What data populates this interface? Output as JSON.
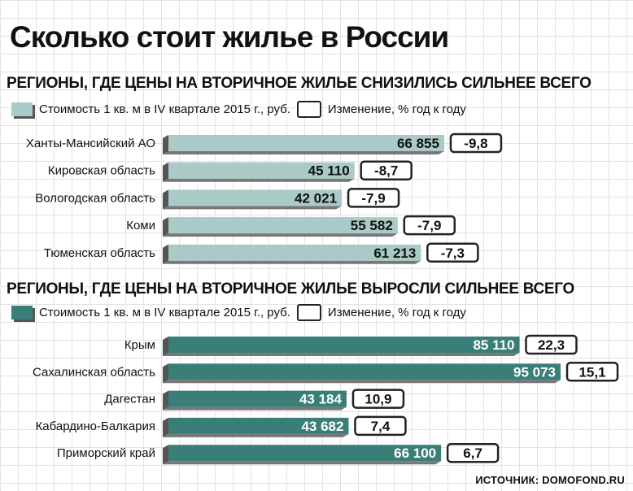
{
  "title": "Сколько стоит жилье в России",
  "source": "ИСТОЧНИК: DOMOFOND.RU",
  "colors": {
    "decrease_bar": "#a9cac6",
    "increase_bar": "#3a7f77"
  },
  "chart_data": [
    {
      "type": "bar",
      "title": "РЕГИОНЫ, ГДЕ ЦЕНЫ НА ВТОРИЧНОЕ ЖИЛЬЕ СНИЗИЛИСЬ СИЛЬНЕЕ ВСЕГО",
      "legend": {
        "value_label": "Стоимость 1 кв. м в IV квартале 2015 г., руб.",
        "change_label": "Изменение, % год к году"
      },
      "categories": [
        "Ханты-Мансийский АО",
        "Кировская область",
        "Вологодская область",
        "Коми",
        "Тюменская область"
      ],
      "values": [
        66855,
        45110,
        42021,
        55582,
        61213
      ],
      "value_labels": [
        "66 855",
        "45 110",
        "42 021",
        "55 582",
        "61 213"
      ],
      "changes": [
        -9.8,
        -8.7,
        -7.9,
        -7.9,
        -7.3
      ],
      "change_labels": [
        "-9,8",
        "-8,7",
        "-7,9",
        "-7,9",
        "-7,3"
      ]
    },
    {
      "type": "bar",
      "title": "РЕГИОНЫ, ГДЕ ЦЕНЫ НА ВТОРИЧНОЕ ЖИЛЬЕ ВЫРОСЛИ СИЛЬНЕЕ ВСЕГО",
      "legend": {
        "value_label": "Стоимость 1 кв. м в IV квартале 2015 г., руб.",
        "change_label": "Изменение, % год к году"
      },
      "categories": [
        "Крым",
        "Сахалинская область",
        "Дагестан",
        "Кабардино-Балкария",
        "Приморский край"
      ],
      "values": [
        85110,
        95073,
        43184,
        43682,
        66100
      ],
      "value_labels": [
        "85 110",
        "95 073",
        "43 184",
        "43 682",
        "66 100"
      ],
      "changes": [
        22.3,
        15.1,
        10.9,
        7.4,
        6.7
      ],
      "change_labels": [
        "22,3",
        "15,1",
        "10,9",
        "7,4",
        "6,7"
      ]
    }
  ]
}
